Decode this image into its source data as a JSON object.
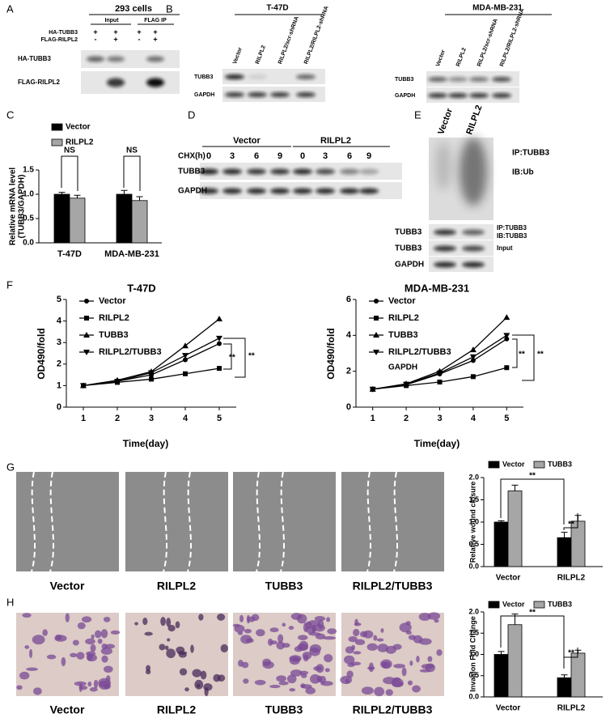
{
  "panel_letters": [
    "A",
    "B",
    "C",
    "D",
    "E",
    "F",
    "G",
    "H"
  ],
  "blot_a": {
    "title": "293 cells",
    "groups": [
      "Input",
      "FLAG IP"
    ],
    "rows": [
      {
        "label": "HA-TUBB3",
        "signs": [
          "+",
          "+",
          "+",
          "+"
        ]
      },
      {
        "label": "FLAG-RILPL2",
        "signs": [
          "-",
          "+",
          "-",
          "+"
        ]
      }
    ],
    "bands": [
      "HA-TUBB3",
      "FLAG-RILPL2"
    ]
  },
  "blot_b": [
    {
      "title": "T-47D",
      "lanes": [
        "Vector",
        "RILPL2",
        "RILPL2/scr-shRNA",
        "RILPL2/RILPL2-shRNA"
      ],
      "bands": [
        "TUBB3",
        "GAPDH"
      ]
    },
    {
      "title": "MDA-MB-231",
      "lanes": [
        "Vector",
        "RILPL2",
        "RILPL2/scr-shRNA",
        "RILPL2/RILPL2-shRNA"
      ],
      "bands": [
        "TUBB3",
        "GAPDH"
      ]
    }
  ],
  "blot_d": {
    "groups": [
      "Vector",
      "RILPL2"
    ],
    "time_label": "CHX(h)",
    "times": [
      0,
      3,
      6,
      9,
      0,
      3,
      6,
      9
    ],
    "bands": [
      "TUBB3",
      "GAPDH"
    ]
  },
  "blot_e": {
    "lanes": [
      "Vector",
      "RILPL2"
    ],
    "ip": "IP:TUBB3",
    "ib": "IB:Ub",
    "bands": [
      {
        "name": "TUBB3",
        "notes": [
          "IP:TUBB3",
          "IB:TUBB3"
        ]
      },
      {
        "name": "TUBB3",
        "notes": [
          "Input"
        ]
      },
      {
        "name": "GAPDH"
      }
    ]
  },
  "images_g": [
    "Vector",
    "RILPL2",
    "TUBB3",
    "RILPL2/TUBB3"
  ],
  "images_h": [
    "Vector",
    "RILPL2",
    "TUBB3",
    "RILPL2/TUBB3"
  ],
  "chart_data": [
    {
      "type": "bar",
      "ylabel": [
        "Relative mRNA level",
        "(TUBB3/GAPDH)"
      ],
      "categories": [
        "T-47D",
        "MDA-MB-231"
      ],
      "series": [
        {
          "name": "Vector",
          "color": "#000000",
          "values": [
            1.0,
            1.0
          ],
          "errors": [
            0.04,
            0.08
          ]
        },
        {
          "name": "RILPL2",
          "color": "#a6a6a6",
          "values": [
            0.92,
            0.87
          ],
          "errors": [
            0.06,
            0.08
          ]
        }
      ],
      "ylim": [
        0,
        1.5
      ],
      "yticks": [
        {
          "value": 0,
          "label": "0.0"
        },
        0.5,
        {
          "value": 1,
          "label": "1.0"
        },
        1.5
      ],
      "annotations": [
        "NS",
        "NS"
      ]
    },
    {
      "type": "line",
      "title": "T-47D",
      "xlabel": "Time(day)",
      "ylabel": "OD490/fold",
      "x": [
        1,
        2,
        3,
        4,
        5
      ],
      "series": [
        {
          "name": "Vector",
          "color": "#000000",
          "marker": "circle",
          "values": [
            1.0,
            1.2,
            1.5,
            2.2,
            2.95
          ]
        },
        {
          "name": "RILPL2",
          "color": "#000000",
          "marker": "square",
          "values": [
            1.0,
            1.15,
            1.3,
            1.55,
            1.8
          ]
        },
        {
          "name": "TUBB3",
          "color": "#000000",
          "marker": "triangle",
          "values": [
            1.0,
            1.25,
            1.65,
            2.85,
            4.1
          ]
        },
        {
          "name": "RILPL2/TUBB3",
          "color": "#000000",
          "marker": "down-triangle",
          "values": [
            1.0,
            1.2,
            1.6,
            2.4,
            3.2
          ]
        }
      ],
      "xlim": [
        0.5,
        5.5
      ],
      "xticks": [
        1,
        2,
        3,
        4,
        5
      ],
      "ylim": [
        0,
        5
      ],
      "yticks": [
        0,
        1,
        2,
        3,
        4,
        5
      ],
      "annotations": [
        "**",
        "**"
      ]
    },
    {
      "type": "line",
      "title": "MDA-MB-231",
      "xlabel": "Time(day)",
      "ylabel": "OD490/fold",
      "x": [
        1,
        2,
        3,
        4,
        5
      ],
      "series": [
        {
          "name": "Vector",
          "color": "#000000",
          "marker": "circle",
          "values": [
            1.0,
            1.25,
            1.85,
            2.6,
            3.8
          ]
        },
        {
          "name": "RILPL2",
          "color": "#000000",
          "marker": "square",
          "values": [
            1.0,
            1.2,
            1.4,
            1.7,
            2.2
          ]
        },
        {
          "name": "TUBB3",
          "color": "#000000",
          "marker": "triangle",
          "values": [
            1.0,
            1.3,
            2.0,
            3.2,
            5.0
          ]
        },
        {
          "name": "RILPL2/TUBB3",
          "color": "#000000",
          "marker": "down-triangle",
          "values": [
            1.0,
            1.28,
            1.9,
            2.8,
            4.0
          ]
        }
      ],
      "xlim": [
        0.5,
        5.5
      ],
      "xticks": [
        1,
        2,
        3,
        4,
        5
      ],
      "ylim": [
        0,
        6
      ],
      "yticks": [
        0,
        2,
        4,
        6
      ],
      "annotations": [
        "**",
        "**",
        "GAPDH"
      ]
    },
    {
      "type": "bar",
      "ylabel": [
        "Relative wound closure"
      ],
      "categories": [
        "Vector",
        "RILPL2"
      ],
      "series": [
        {
          "name": "Vector",
          "color": "#000000",
          "values": [
            1.0,
            0.65
          ],
          "errors": [
            0.03,
            0.12
          ]
        },
        {
          "name": "TUBB3",
          "color": "#a6a6a6",
          "values": [
            1.7,
            1.02
          ],
          "errors": [
            0.13,
            0.13
          ]
        }
      ],
      "ylim": [
        0,
        2
      ],
      "yticks": [
        {
          "value": 0,
          "label": "0.0"
        },
        0.5,
        {
          "value": 1,
          "label": "1.0"
        },
        1.5,
        {
          "value": 2,
          "label": "2.0"
        }
      ],
      "annotations": [
        "**",
        "**"
      ]
    },
    {
      "type": "bar",
      "ylabel": [
        "Invasion Fold Change"
      ],
      "categories": [
        "Vector",
        "RILPL2"
      ],
      "series": [
        {
          "name": "Vector",
          "color": "#000000",
          "values": [
            1.0,
            0.45
          ],
          "errors": [
            0.07,
            0.07
          ]
        },
        {
          "name": "TUBB3",
          "color": "#a6a6a6",
          "values": [
            1.7,
            1.03
          ],
          "errors": [
            0.25,
            0.07
          ]
        }
      ],
      "ylim": [
        0,
        2
      ],
      "yticks": [
        {
          "value": 0,
          "label": "0.0"
        },
        0.5,
        {
          "value": 1,
          "label": "1.0"
        },
        1.5,
        {
          "value": 2,
          "label": "2.0"
        }
      ],
      "annotations": [
        "**",
        "**"
      ]
    }
  ]
}
